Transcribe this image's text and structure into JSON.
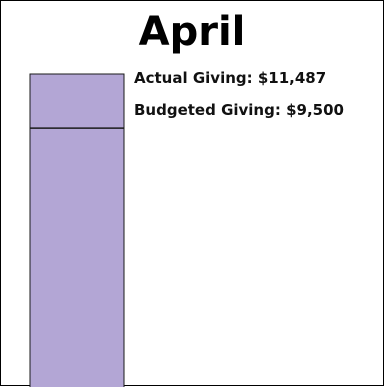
{
  "chart_data": {
    "type": "bar",
    "title": "April",
    "categories": [
      "April"
    ],
    "series": [
      {
        "name": "Actual Giving",
        "values": [
          11487
        ]
      },
      {
        "name": "Budgeted Giving",
        "values": [
          9500
        ]
      }
    ],
    "annotations": {
      "actual_label": "Actual Giving: $11,487",
      "budget_label": "Budgeted Giving: $9,500"
    },
    "ylim": [
      0,
      11487
    ],
    "grid": false,
    "legend": "none"
  },
  "colors": {
    "bar_fill": "#b3a6d5",
    "bar_stroke": "#1a1a1a",
    "budget_line": "#1a1a1a"
  }
}
